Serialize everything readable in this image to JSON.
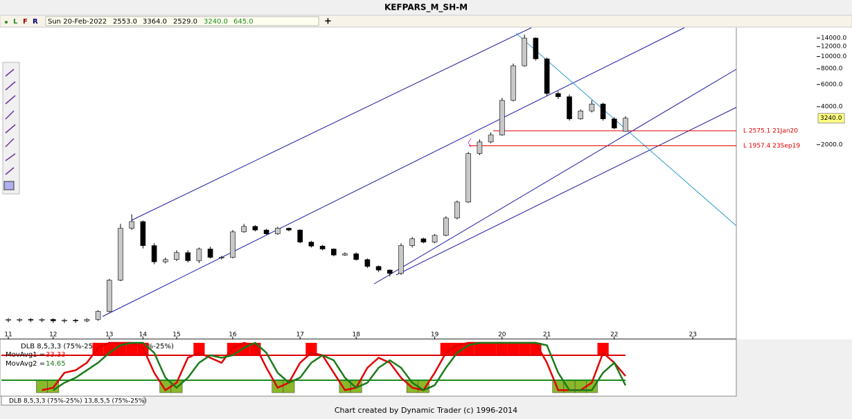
{
  "header": {
    "title": "KEFPARS_M_SH-M"
  },
  "toolbar": {
    "buttons": [
      "L",
      "F",
      "R"
    ],
    "date": "Sun 20-Feb-2022",
    "open": "2553.0",
    "high": "3364.0",
    "low": "2529.0",
    "close": "3240.0",
    "volume": "645.0"
  },
  "chart_data": [
    {
      "type": "candlestick",
      "categories": [
        "11",
        null,
        null,
        null,
        "12",
        null,
        null,
        null,
        null,
        "13",
        null,
        null,
        "14",
        null,
        null,
        "15",
        null,
        null,
        null,
        null,
        "16",
        null,
        null,
        null,
        null,
        null,
        "17",
        null,
        null,
        null,
        null,
        "18",
        null,
        null,
        null,
        null,
        null,
        null,
        "19",
        null,
        null,
        null,
        null,
        null,
        "20",
        null,
        null,
        null,
        "21",
        null,
        null,
        null,
        null,
        null,
        "22",
        null,
        null,
        null,
        null,
        null,
        null,
        "23"
      ],
      "open": [
        82,
        82,
        82,
        81,
        82,
        80,
        81,
        80,
        82,
        95,
        168,
        434,
        490,
        316,
        235,
        245,
        278,
        240,
        297,
        255,
        255,
        406,
        449,
        420,
        392,
        434,
        420,
        337,
        313,
        297,
        266,
        272,
        245,
        216,
        202,
        190,
        316,
        358,
        337,
        381,
        523,
        700,
        1700,
        2101,
        2385,
        4487,
        8443,
        14000,
        9580,
        5091,
        4800,
        3200,
        3700,
        4200,
        3200,
        2553,
        null,
        null,
        null,
        null,
        null,
        null
      ],
      "high": [
        84,
        84,
        84,
        84,
        84,
        83,
        83,
        84,
        97,
        172,
        470,
        560,
        500,
        330,
        255,
        290,
        290,
        305,
        310,
        262,
        420,
        470,
        460,
        430,
        445,
        440,
        425,
        345,
        320,
        300,
        280,
        280,
        250,
        220,
        205,
        330,
        370,
        365,
        390,
        540,
        720,
        1750,
        2200,
        2500,
        4700,
        8800,
        14900,
        14200,
        9800,
        5300,
        5000,
        3800,
        4500,
        4300,
        3300,
        3364,
        null,
        null,
        null,
        null,
        null,
        null
      ],
      "low": [
        78,
        78,
        78,
        78,
        77,
        77,
        77,
        78,
        80,
        93,
        165,
        420,
        300,
        225,
        228,
        238,
        232,
        230,
        250,
        245,
        250,
        400,
        410,
        385,
        385,
        410,
        330,
        305,
        290,
        260,
        262,
        240,
        210,
        195,
        180,
        185,
        305,
        330,
        330,
        375,
        510,
        690,
        1650,
        2050,
        2350,
        4400,
        8300,
        9300,
        4900,
        4600,
        3100,
        3150,
        3600,
        3100,
        2650,
        2529,
        null,
        null,
        null,
        null,
        null,
        null
      ],
      "close": [
        82,
        82,
        81,
        82,
        80,
        81,
        80,
        82,
        95,
        168,
        434,
        490,
        316,
        235,
        245,
        278,
        240,
        297,
        255,
        255,
        406,
        449,
        420,
        392,
        434,
        420,
        337,
        313,
        297,
        266,
        272,
        245,
        216,
        202,
        190,
        316,
        358,
        337,
        381,
        523,
        700,
        1700,
        2101,
        2385,
        4487,
        8443,
        14000,
        9580,
        5091,
        4800,
        3200,
        3700,
        4200,
        3200,
        2706,
        3240,
        null,
        null,
        null,
        null,
        null,
        null
      ],
      "up_color": "#c8c8c8",
      "down_color": "#000000",
      "yscale": "log",
      "ylim": [
        57,
        16930
      ],
      "yticks": [
        {
          "value": 14000,
          "label": "14000.0"
        },
        {
          "value": 12000,
          "label": "12000.0"
        },
        {
          "value": 10000,
          "label": "10000.0"
        },
        {
          "value": 8000,
          "label": "8000.0"
        },
        {
          "value": 6000,
          "label": "6000.0"
        },
        {
          "value": 4000,
          "label": "4000.0"
        },
        {
          "value": 2000,
          "label": "2000.0"
        }
      ],
      "levels": [
        {
          "value": 2575.1,
          "label": "L 2575.1 21Jan20",
          "color": "#e00000"
        },
        {
          "value": 1957.4,
          "label": "L 1957.4 23Sep19",
          "color": "#e00000"
        }
      ]
    },
    {
      "type": "line",
      "title": "DLB 8,5,3,3 (75%-25%) 13,8,5,5 (75%-25%)",
      "ylim": [
        0,
        100
      ],
      "levels": [
        75,
        25
      ],
      "series": [
        {
          "name": "MovAvg1 =",
          "color": "#e00000",
          "values": [
            null,
            null,
            null,
            5,
            10,
            40,
            45,
            60,
            90,
            100,
            100,
            100,
            90,
            40,
            5,
            20,
            70,
            80,
            70,
            60,
            90,
            100,
            95,
            50,
            10,
            20,
            60,
            80,
            75,
            40,
            5,
            10,
            50,
            70,
            60,
            30,
            10,
            5,
            40,
            80,
            95,
            100,
            100,
            100,
            100,
            100,
            100,
            100,
            60,
            5,
            5,
            5,
            20,
            80,
            60,
            33.33,
            null,
            null,
            null,
            null,
            null,
            null
          ]
        },
        {
          "name": "MovAvg2 =",
          "color": "#1a7a1a",
          "values": [
            null,
            null,
            null,
            null,
            5,
            20,
            30,
            45,
            60,
            80,
            95,
            100,
            100,
            80,
            30,
            10,
            30,
            60,
            75,
            70,
            75,
            90,
            100,
            80,
            40,
            20,
            30,
            60,
            75,
            65,
            30,
            10,
            20,
            50,
            65,
            50,
            20,
            5,
            15,
            50,
            80,
            95,
            100,
            100,
            100,
            100,
            100,
            100,
            95,
            40,
            5,
            5,
            5,
            40,
            60,
            14.65,
            null,
            null,
            null,
            null,
            null,
            null
          ]
        }
      ]
    }
  ],
  "tab": "DLB 8,5,3,3 (75%-25%) 13,8,5,5 (75%-25%)",
  "footer": "Chart created by Dynamic Trader  (c) 1996-2014"
}
